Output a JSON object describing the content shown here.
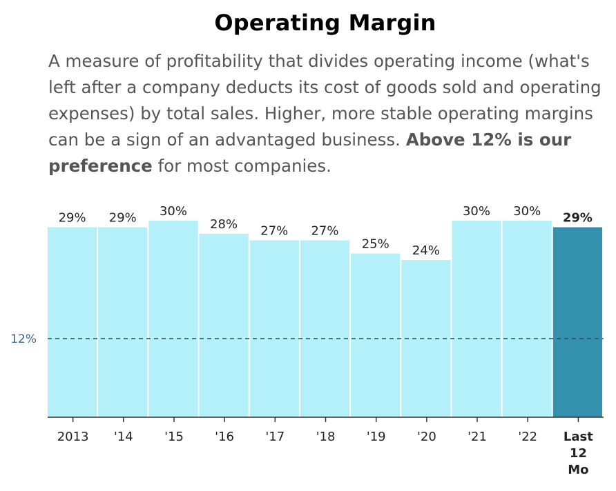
{
  "header": {
    "title": "Operating Margin",
    "description_lead": "A measure of profitability that divides operating income (what's left after a company deducts its cost of goods sold and operating expenses) by total sales. Higher, more stable operating margins can be a sign of an advantaged business.",
    "description_bold": "Above 12% is our preference",
    "description_tail": " for most companies."
  },
  "colors": {
    "bar": "#b3f0f9",
    "bar_highlight": "#3391ae",
    "reference_line": "#2a4a5a",
    "reference_label": "#3b6a8a",
    "axis": "#333333"
  },
  "chart_data": {
    "type": "bar",
    "categories": [
      "2013",
      "'14",
      "'15",
      "'16",
      "'17",
      "'18",
      "'19",
      "'20",
      "'21",
      "'22",
      "Last 12 Mo"
    ],
    "values": [
      29,
      29,
      30,
      28,
      27,
      27,
      25,
      24,
      30,
      30,
      29
    ],
    "data_labels": [
      "29%",
      "29%",
      "30%",
      "28%",
      "27%",
      "27%",
      "25%",
      "24%",
      "30%",
      "30%",
      "29%"
    ],
    "highlight_index": 10,
    "reference_value": 12,
    "reference_label": "12%",
    "ylim": [
      0,
      34
    ],
    "grid": false
  }
}
